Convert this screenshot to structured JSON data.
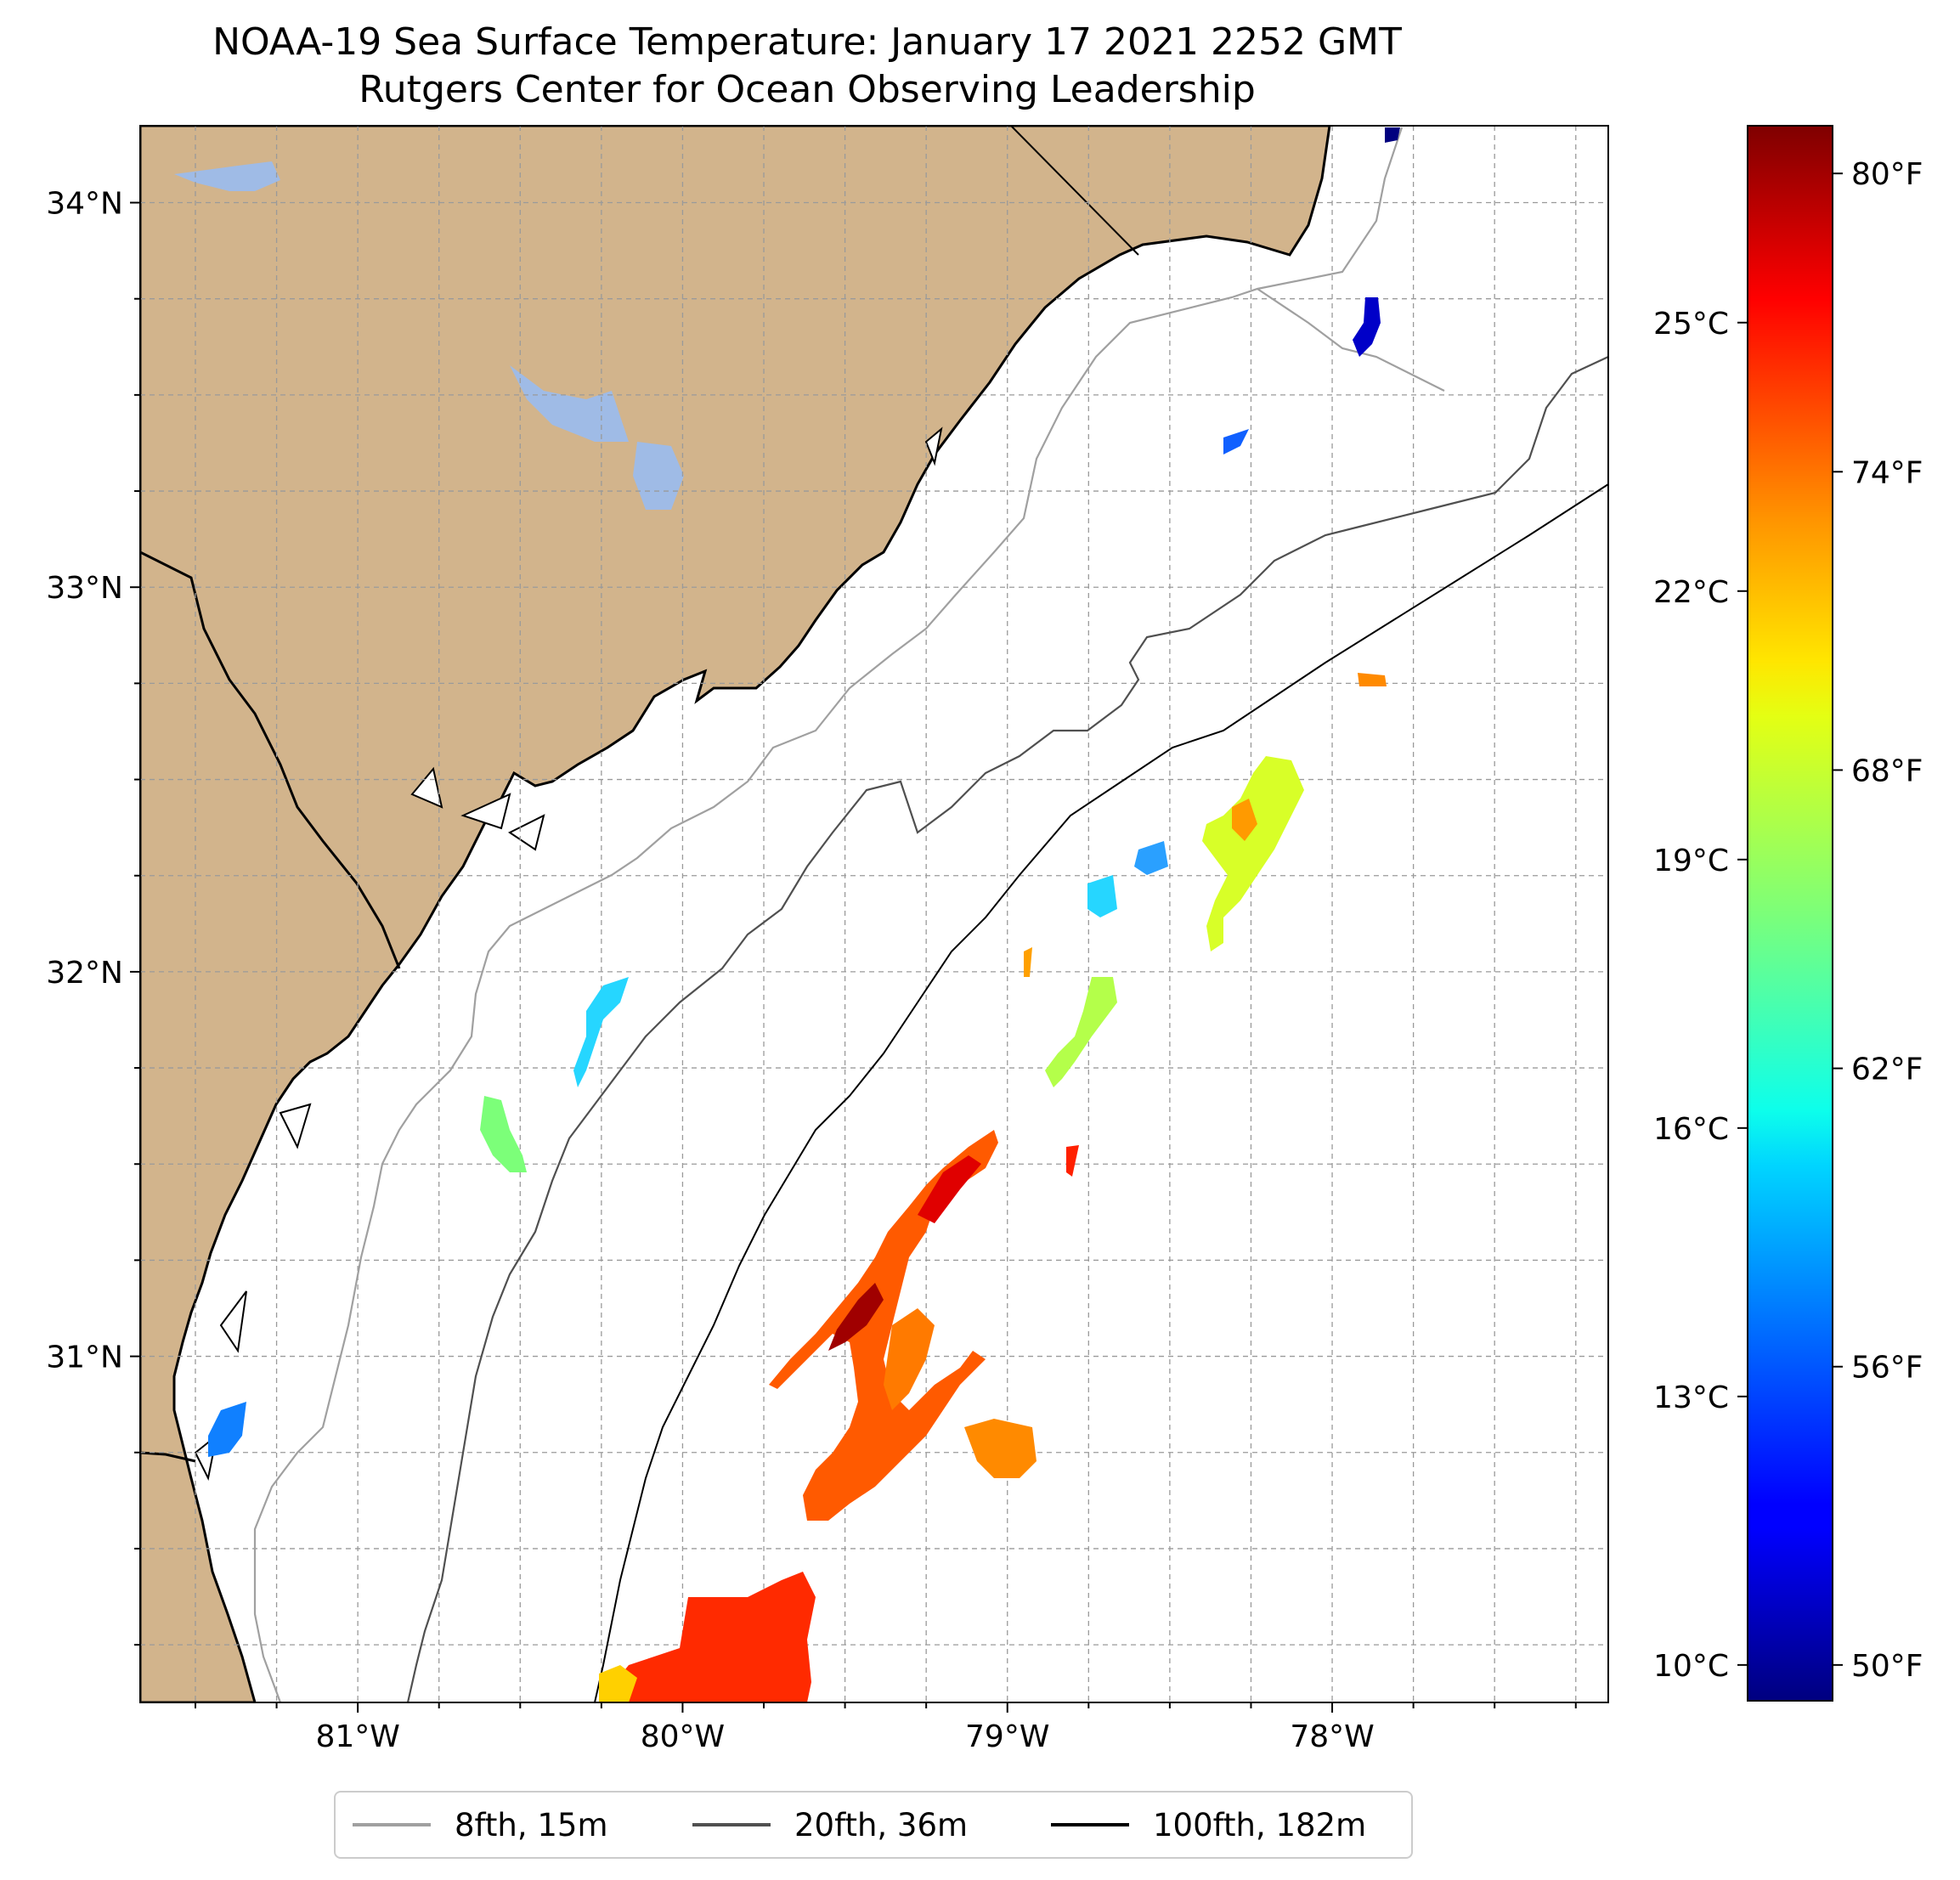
{
  "title": "NOAA-19 Sea Surface Temperature: January 17 2021 2252 GMT",
  "subtitle": "Rutgers Center for Ocean Observing Leadership",
  "map": {
    "lat_labels": [
      "34°N",
      "33°N",
      "32°N",
      "31°N"
    ],
    "lon_labels": [
      "81°W",
      "80°W",
      "79°W",
      "78°W"
    ],
    "lat_range": [
      30.1,
      34.2
    ],
    "lon_range": [
      -81.67,
      -77.15
    ],
    "land_color": "#d2b48c",
    "water_color": "#ffffff",
    "lake_color": "#9fbbe6",
    "gridlines": true
  },
  "colorbar": {
    "colormap": "jet",
    "celsius_labels": [
      "25°C",
      "22°C",
      "19°C",
      "16°C",
      "13°C",
      "10°C"
    ],
    "fahrenheit_labels": [
      "80°F",
      "74°F",
      "68°F",
      "62°F",
      "56°F",
      "50°F"
    ],
    "range_celsius": [
      9.6,
      27.2
    ]
  },
  "legend": {
    "entries": [
      {
        "label": "8fth, 15m",
        "color": "#a0a0a0"
      },
      {
        "label": "20fth, 36m",
        "color": "#505050"
      },
      {
        "label": "100fth, 182m",
        "color": "#000000"
      }
    ]
  }
}
